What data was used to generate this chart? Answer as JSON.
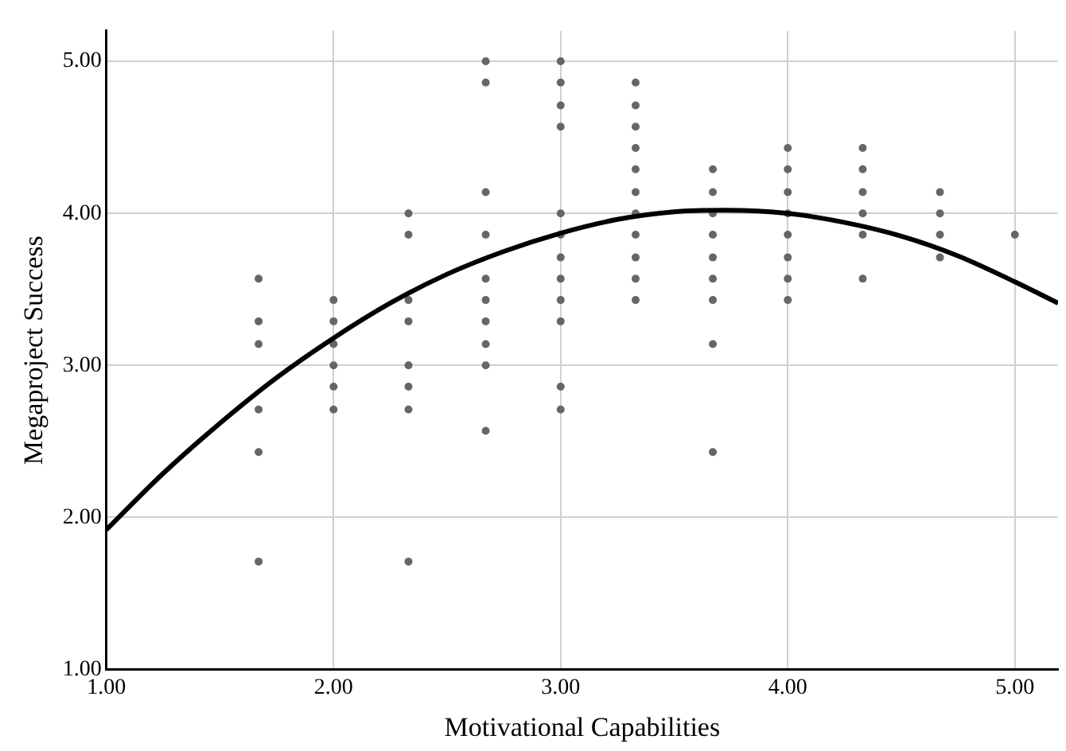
{
  "chart_data": {
    "type": "scatter",
    "xlabel": "Motivational Capabilities",
    "ylabel": "Megaproject Success",
    "xlim": [
      1,
      5.19
    ],
    "ylim": [
      1,
      5.2
    ],
    "xticks": [
      {
        "value": 1,
        "label": "1.00"
      },
      {
        "value": 2,
        "label": "2.00"
      },
      {
        "value": 3,
        "label": "3.00"
      },
      {
        "value": 4,
        "label": "4.00"
      },
      {
        "value": 5,
        "label": "5.00"
      }
    ],
    "yticks": [
      {
        "value": 1,
        "label": "1.00"
      },
      {
        "value": 2,
        "label": "2.00"
      },
      {
        "value": 3,
        "label": "3.00"
      },
      {
        "value": 4,
        "label": "4.00"
      },
      {
        "value": 5,
        "label": "5.00"
      }
    ],
    "grid": true,
    "marker": "circle",
    "series": [
      {
        "type": "scatter",
        "color": "#666666",
        "x": [
          1.67,
          1.67,
          1.67,
          1.67,
          1.67,
          1.67,
          2,
          2,
          2,
          2,
          2,
          2,
          2.33,
          2.33,
          2.33,
          2.33,
          2.33,
          2.33,
          2.33,
          2.33,
          2.67,
          2.67,
          2.67,
          2.67,
          2.67,
          2.67,
          2.67,
          2.67,
          2.67,
          2.67,
          3,
          3,
          3,
          3,
          3,
          3,
          3,
          3,
          3,
          3,
          3,
          3,
          3.33,
          3.33,
          3.33,
          3.33,
          3.33,
          3.33,
          3.33,
          3.33,
          3.33,
          3.33,
          3.33,
          3.67,
          3.67,
          3.67,
          3.67,
          3.67,
          3.67,
          3.67,
          3.67,
          3.67,
          4,
          4,
          4,
          4,
          4,
          4,
          4,
          4,
          4.33,
          4.33,
          4.33,
          4.33,
          4.33,
          4.33,
          4.67,
          4.67,
          4.67,
          4.67,
          5
        ],
        "values": [
          3.57,
          3.29,
          3.14,
          2.71,
          2.43,
          1.71,
          3.43,
          3.29,
          3.14,
          3.0,
          2.86,
          2.71,
          4.0,
          3.86,
          3.43,
          3.29,
          3.0,
          2.86,
          2.71,
          1.71,
          5.0,
          4.86,
          4.14,
          3.86,
          3.57,
          3.43,
          3.29,
          3.14,
          3.0,
          2.57,
          5.0,
          4.86,
          4.71,
          4.57,
          4.0,
          3.86,
          3.71,
          3.57,
          3.43,
          3.29,
          2.86,
          2.71,
          4.86,
          4.71,
          4.57,
          4.43,
          4.29,
          4.14,
          4.0,
          3.86,
          3.71,
          3.57,
          3.43,
          4.29,
          4.14,
          4.0,
          3.86,
          3.71,
          3.57,
          3.43,
          3.14,
          2.43,
          4.43,
          4.29,
          4.14,
          4.0,
          3.86,
          3.71,
          3.57,
          3.43,
          4.43,
          4.29,
          4.14,
          4.0,
          3.86,
          3.57,
          4.14,
          4.0,
          3.86,
          3.71,
          3.86
        ]
      },
      {
        "type": "line",
        "color": "#000000",
        "marker": "none",
        "line_style": "solid",
        "x": [
          1,
          1.25,
          1.5,
          1.75,
          2,
          2.25,
          2.5,
          2.75,
          3,
          3.25,
          3.5,
          3.72,
          4,
          4.25,
          4.5,
          4.75,
          5,
          5.19
        ],
        "values": [
          1.92,
          2.29,
          2.62,
          2.92,
          3.18,
          3.41,
          3.6,
          3.75,
          3.87,
          3.96,
          4.01,
          4.02,
          4.0,
          3.94,
          3.85,
          3.72,
          3.55,
          3.41
        ]
      }
    ]
  }
}
